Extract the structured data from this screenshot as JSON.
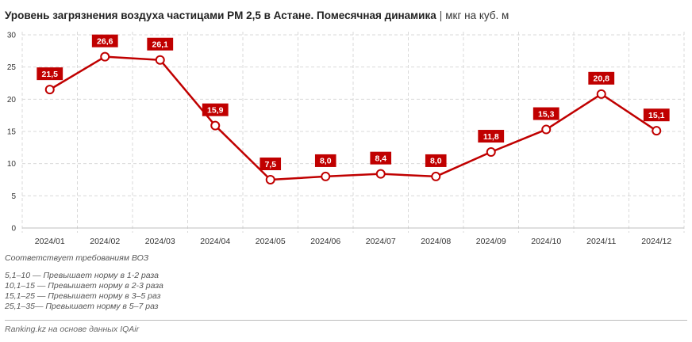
{
  "chart_data": {
    "type": "line",
    "title": "Уровень загрязнения воздуха частицами PM 2,5 в Астане. Помесячная динамика",
    "unit": "мкг на куб. м",
    "categories": [
      "2024/01",
      "2024/02",
      "2024/03",
      "2024/04",
      "2024/05",
      "2024/06",
      "2024/07",
      "2024/08",
      "2024/09",
      "2024/10",
      "2024/11",
      "2024/12"
    ],
    "values": [
      21.5,
      26.6,
      26.1,
      15.9,
      7.5,
      8.0,
      8.4,
      8.0,
      11.8,
      15.3,
      20.8,
      15.1
    ],
    "value_labels": [
      "21,5",
      "26,6",
      "26,1",
      "15,9",
      "7,5",
      "8,0",
      "8,4",
      "8,0",
      "11,8",
      "15,3",
      "20,8",
      "15,1"
    ],
    "y_ticks": [
      0,
      5,
      10,
      15,
      20,
      25,
      30
    ],
    "ylim": [
      0,
      30
    ],
    "grid": true,
    "legend": "none",
    "colors": {
      "line": "#c00000",
      "label_bg": "#c00000",
      "label_text": "#ffffff",
      "marker_fill": "#ffffff",
      "grid": "#d9d9d9"
    }
  },
  "notes": {
    "who": "Соответствует требованиям ВОЗ",
    "ranges": [
      "5,1–10 — Превышает норму в 1-2 раза",
      "10,1–15 — Превышает норму в 2-3 раза",
      "15,1–25 — Превышает норму в 3–5 раз",
      "25,1–35— Превышает норму в 5–7 раз"
    ]
  },
  "source": "Ranking.kz на основе данных IQAir",
  "title_separator": "|"
}
